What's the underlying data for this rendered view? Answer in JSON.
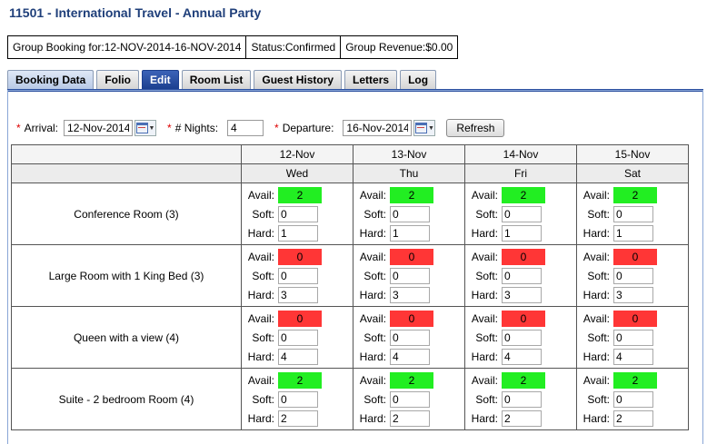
{
  "title": "11501 - International Travel - Annual Party",
  "summary": {
    "booking": "Group Booking for:12-NOV-2014-16-NOV-2014",
    "status": "Status:Confirmed",
    "revenue": "Group Revenue:$0.00"
  },
  "tabs": [
    "Booking Data",
    "Folio",
    "Edit",
    "Room List",
    "Guest History",
    "Letters",
    "Log"
  ],
  "active_tab": "Edit",
  "filters": {
    "arrival_label": "Arrival:",
    "arrival_value": "12-Nov-2014",
    "nights_label": "# Nights:",
    "nights_value": "4",
    "departure_label": "Departure:",
    "departure_value": "16-Nov-2014",
    "refresh_label": "Refresh",
    "required_mark": "*"
  },
  "dates": [
    {
      "date": "12-Nov",
      "day": "Wed"
    },
    {
      "date": "13-Nov",
      "day": "Thu"
    },
    {
      "date": "14-Nov",
      "day": "Fri"
    },
    {
      "date": "15-Nov",
      "day": "Sat"
    }
  ],
  "labels": {
    "avail": "Avail:",
    "soft": "Soft:",
    "hard": "Hard:"
  },
  "colors": {
    "available": "#22ee22",
    "unavailable": "#ff3636"
  },
  "rooms": [
    {
      "name": "Conference Room (3)",
      "cells": [
        {
          "avail": "2",
          "soft": "0",
          "hard": "1"
        },
        {
          "avail": "2",
          "soft": "0",
          "hard": "1"
        },
        {
          "avail": "2",
          "soft": "0",
          "hard": "1"
        },
        {
          "avail": "2",
          "soft": "0",
          "hard": "1"
        }
      ]
    },
    {
      "name": "Large Room with 1 King Bed (3)",
      "cells": [
        {
          "avail": "0",
          "soft": "0",
          "hard": "3"
        },
        {
          "avail": "0",
          "soft": "0",
          "hard": "3"
        },
        {
          "avail": "0",
          "soft": "0",
          "hard": "3"
        },
        {
          "avail": "0",
          "soft": "0",
          "hard": "3"
        }
      ]
    },
    {
      "name": "Queen with a view (4)",
      "cells": [
        {
          "avail": "0",
          "soft": "0",
          "hard": "4"
        },
        {
          "avail": "0",
          "soft": "0",
          "hard": "4"
        },
        {
          "avail": "0",
          "soft": "0",
          "hard": "4"
        },
        {
          "avail": "0",
          "soft": "0",
          "hard": "4"
        }
      ]
    },
    {
      "name": "Suite - 2 bedroom Room (4)",
      "cells": [
        {
          "avail": "2",
          "soft": "0",
          "hard": "2"
        },
        {
          "avail": "2",
          "soft": "0",
          "hard": "2"
        },
        {
          "avail": "2",
          "soft": "0",
          "hard": "2"
        },
        {
          "avail": "2",
          "soft": "0",
          "hard": "2"
        }
      ]
    }
  ]
}
